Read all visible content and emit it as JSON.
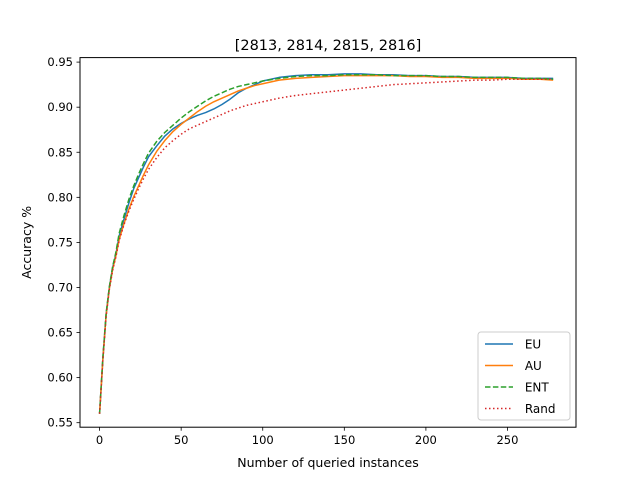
{
  "chart_data": {
    "type": "line",
    "title": "[2813, 2814, 2815, 2816]",
    "xlabel": "Number of queried instances",
    "ylabel": "Accuracy %",
    "xlim": [
      -12,
      292
    ],
    "ylim": [
      0.545,
      0.955
    ],
    "xticks": [
      0,
      50,
      100,
      150,
      200,
      250
    ],
    "xtick_labels": [
      "0",
      "50",
      "100",
      "150",
      "200",
      "250"
    ],
    "yticks": [
      0.55,
      0.6,
      0.65,
      0.7,
      0.75,
      0.8,
      0.85,
      0.9,
      0.95
    ],
    "ytick_labels": [
      "0.55",
      "0.60",
      "0.65",
      "0.70",
      "0.75",
      "0.80",
      "0.85",
      "0.90",
      "0.95"
    ],
    "grid": false,
    "legend_position": "lower-right",
    "x": [
      0,
      2,
      4,
      6,
      8,
      10,
      12,
      15,
      18,
      21,
      24,
      27,
      30,
      35,
      40,
      45,
      50,
      55,
      60,
      65,
      70,
      75,
      80,
      85,
      90,
      95,
      100,
      110,
      120,
      130,
      140,
      150,
      160,
      170,
      180,
      190,
      200,
      210,
      220,
      230,
      240,
      250,
      260,
      270,
      278
    ],
    "series": [
      {
        "name": " EU",
        "color": "#1f77b4",
        "dash": "solid",
        "values": [
          0.56,
          0.62,
          0.67,
          0.7,
          0.722,
          0.737,
          0.757,
          0.776,
          0.794,
          0.81,
          0.822,
          0.834,
          0.845,
          0.857,
          0.868,
          0.876,
          0.882,
          0.887,
          0.891,
          0.894,
          0.898,
          0.903,
          0.909,
          0.916,
          0.921,
          0.925,
          0.929,
          0.933,
          0.935,
          0.936,
          0.936,
          0.937,
          0.937,
          0.936,
          0.936,
          0.935,
          0.935,
          0.934,
          0.934,
          0.933,
          0.933,
          0.933,
          0.932,
          0.932,
          0.932
        ]
      },
      {
        "name": " AU",
        "color": "#ff7f0e",
        "dash": "solid",
        "values": [
          0.56,
          0.62,
          0.669,
          0.699,
          0.72,
          0.735,
          0.753,
          0.771,
          0.787,
          0.801,
          0.813,
          0.825,
          0.836,
          0.851,
          0.863,
          0.873,
          0.881,
          0.888,
          0.895,
          0.901,
          0.906,
          0.91,
          0.914,
          0.918,
          0.921,
          0.924,
          0.926,
          0.93,
          0.932,
          0.933,
          0.934,
          0.935,
          0.935,
          0.935,
          0.935,
          0.934,
          0.934,
          0.933,
          0.933,
          0.932,
          0.932,
          0.932,
          0.931,
          0.931,
          0.93
        ]
      },
      {
        "name": " ENT",
        "color": "#2ca02c",
        "dash": "dashed",
        "values": [
          0.56,
          0.622,
          0.671,
          0.701,
          0.723,
          0.739,
          0.76,
          0.78,
          0.798,
          0.813,
          0.826,
          0.838,
          0.849,
          0.862,
          0.872,
          0.88,
          0.888,
          0.895,
          0.901,
          0.907,
          0.912,
          0.916,
          0.92,
          0.923,
          0.925,
          0.927,
          0.929,
          0.932,
          0.934,
          0.935,
          0.935,
          0.936,
          0.936,
          0.936,
          0.935,
          0.935,
          0.935,
          0.934,
          0.934,
          0.933,
          0.933,
          0.933,
          0.932,
          0.932,
          0.931
        ]
      },
      {
        "name": " Rand",
        "color": "#d62728",
        "dash": "dotted",
        "values": [
          0.56,
          0.619,
          0.668,
          0.698,
          0.719,
          0.734,
          0.752,
          0.77,
          0.785,
          0.798,
          0.81,
          0.821,
          0.831,
          0.844,
          0.855,
          0.863,
          0.87,
          0.876,
          0.88,
          0.884,
          0.888,
          0.892,
          0.896,
          0.899,
          0.902,
          0.904,
          0.906,
          0.91,
          0.913,
          0.915,
          0.917,
          0.919,
          0.921,
          0.923,
          0.925,
          0.926,
          0.927,
          0.928,
          0.929,
          0.93,
          0.93,
          0.931,
          0.931,
          0.931,
          0.931
        ]
      }
    ]
  }
}
